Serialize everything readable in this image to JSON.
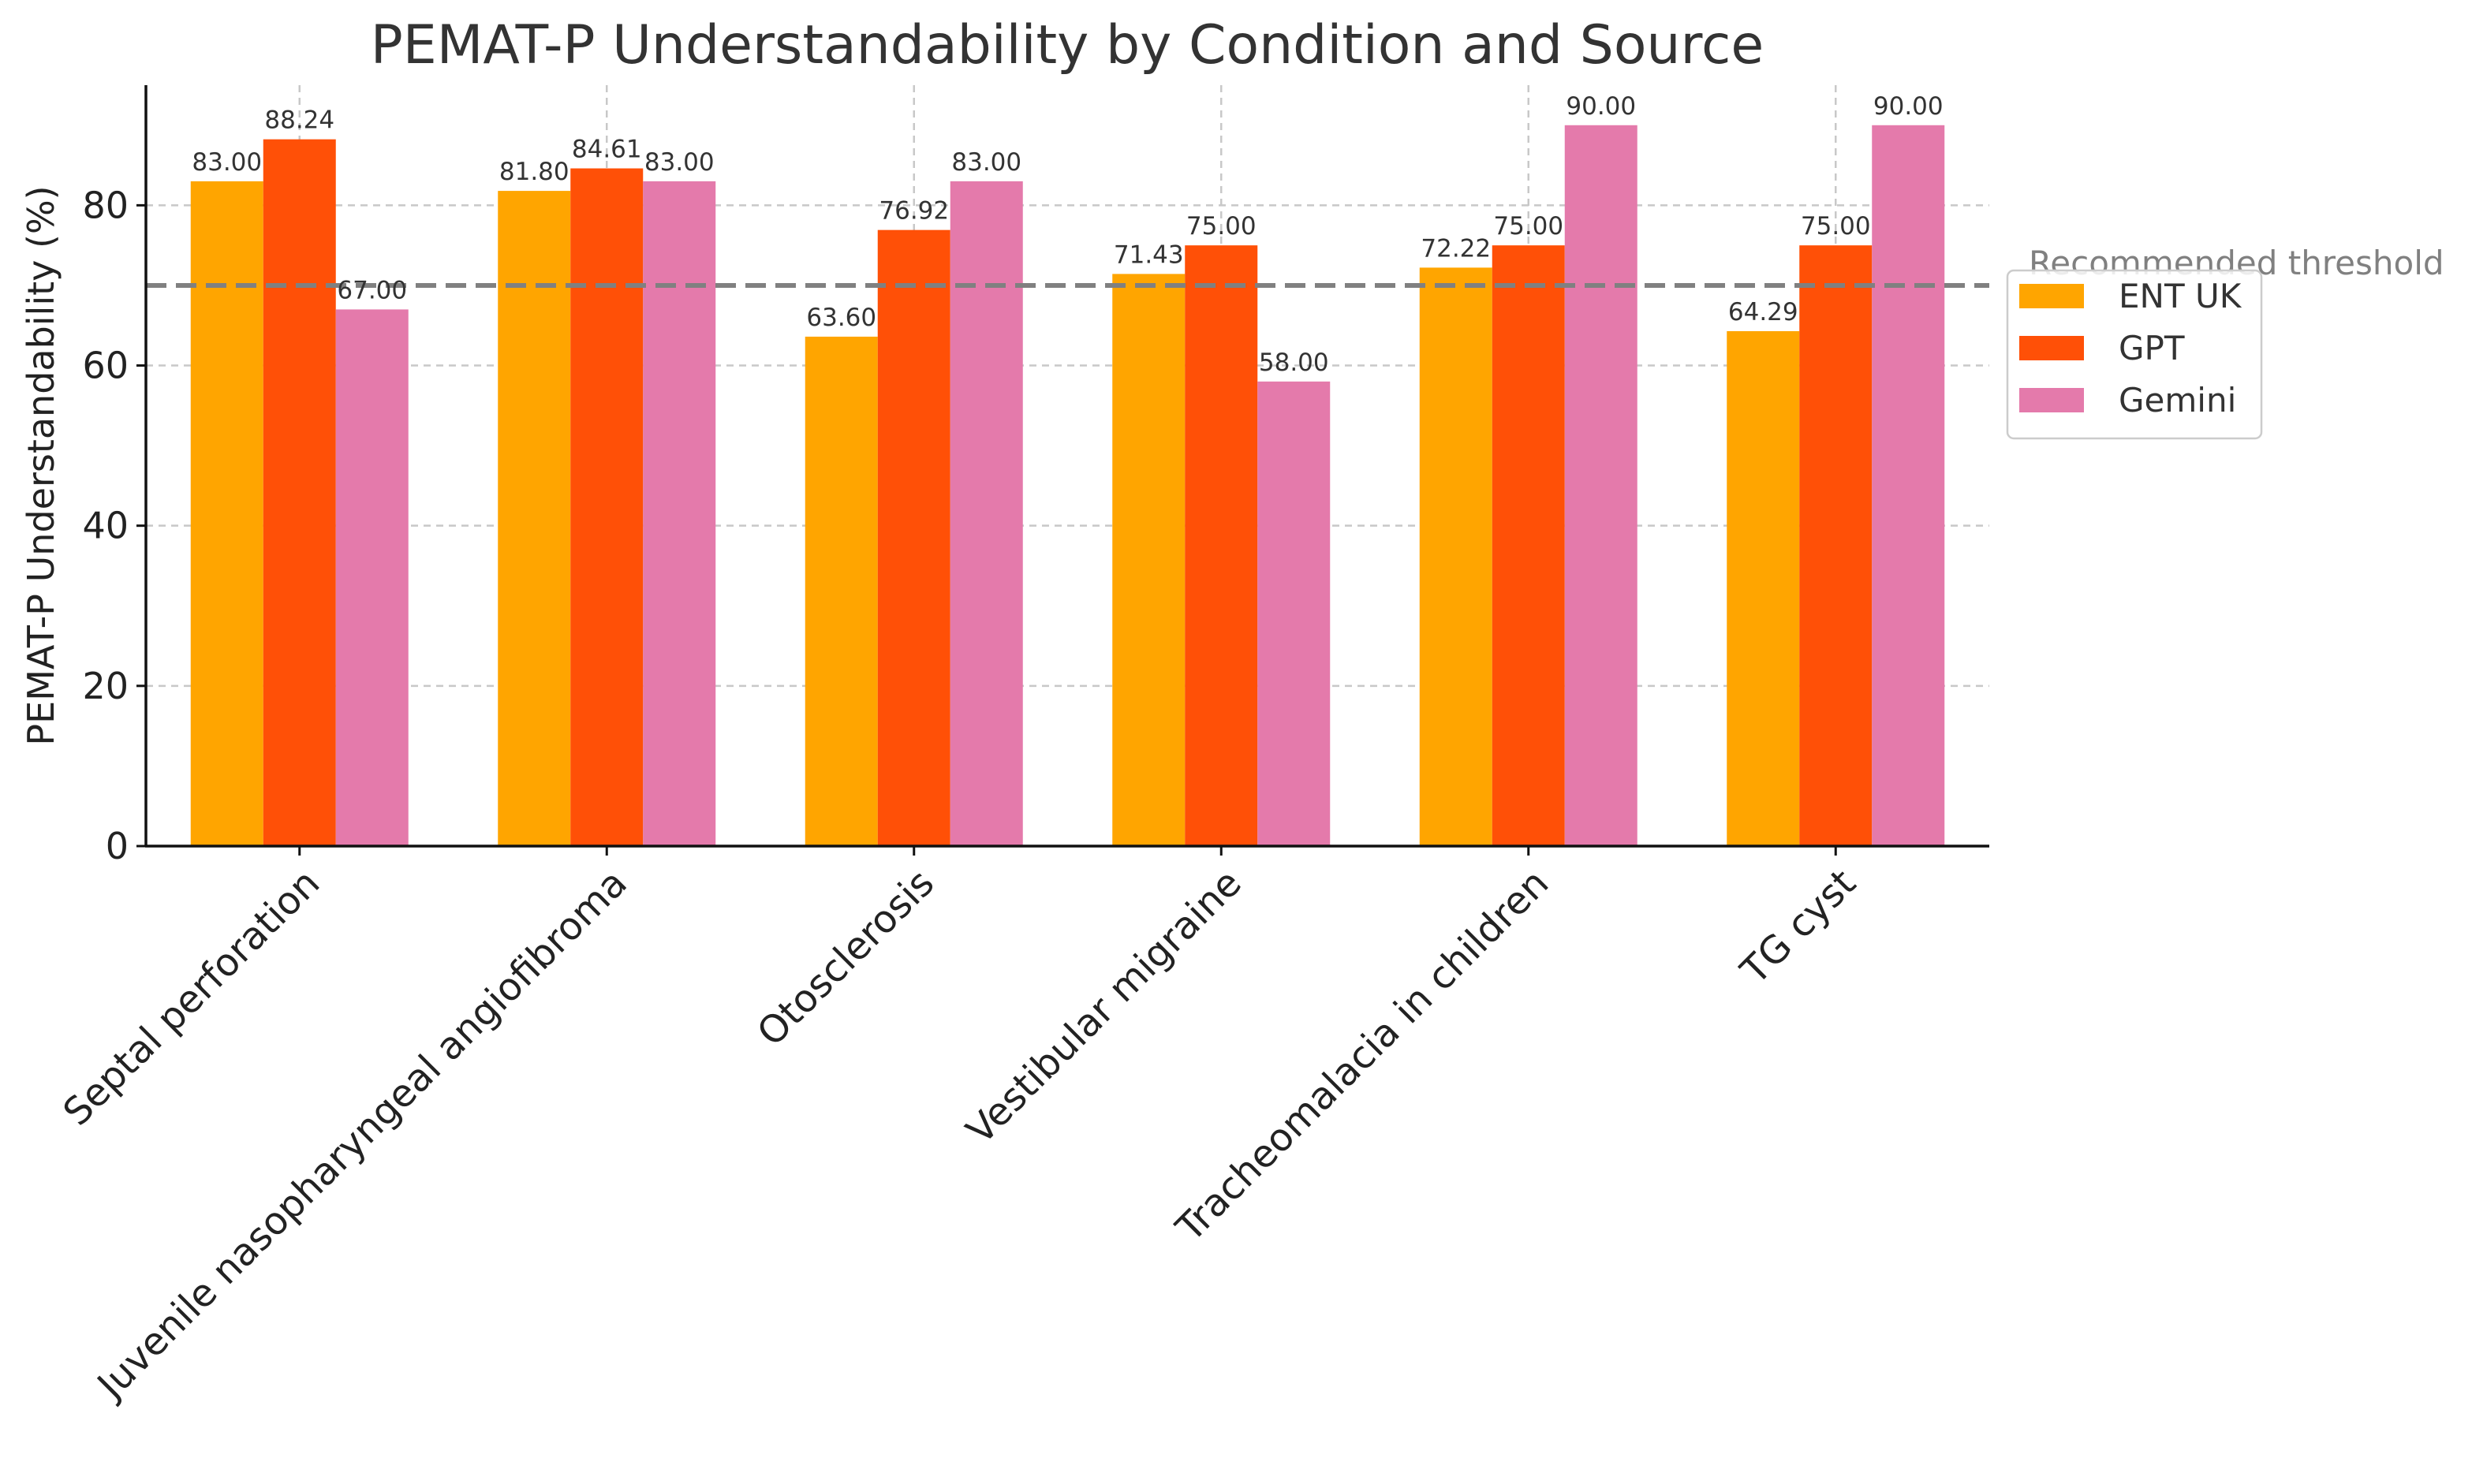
{
  "chart_data": {
    "type": "bar",
    "title": "PEMAT-P Understandability by Condition and Source",
    "xlabel": "",
    "ylabel": "PEMAT-P Understandability (%)",
    "ylim": [
      0,
      95
    ],
    "yticks": [
      0,
      20,
      40,
      60,
      80
    ],
    "categories": [
      "Septal perforation",
      "Juvenile nasopharyngeal angiofibroma",
      "Otosclerosis",
      "Vestibular migraine",
      "Tracheomalacia in children",
      "TG cyst"
    ],
    "series": [
      {
        "name": "ENT UK",
        "color": "#ffa500",
        "values": [
          83.0,
          81.8,
          63.6,
          71.43,
          72.22,
          64.29
        ]
      },
      {
        "name": "GPT",
        "color": "#ff5007",
        "values": [
          88.24,
          84.61,
          76.92,
          75.0,
          75.0,
          75.0
        ]
      },
      {
        "name": "Gemini",
        "color": "#e47aab",
        "values": [
          67.0,
          83.0,
          83.0,
          58.0,
          90.0,
          90.0
        ]
      }
    ],
    "data_labels": [
      [
        "83.00",
        "81.80",
        "63.60",
        "71.43",
        "72.22",
        "64.29"
      ],
      [
        "88.24",
        "84.61",
        "76.92",
        "75.00",
        "75.00",
        "75.00"
      ],
      [
        "67.00",
        "83.00",
        "83.00",
        "58.00",
        "90.00",
        "90.00"
      ]
    ],
    "threshold": {
      "value": 70,
      "label": "Recommended threshold",
      "color": "#808080",
      "style": "dashed"
    },
    "grid": true,
    "legend_position": "right"
  }
}
